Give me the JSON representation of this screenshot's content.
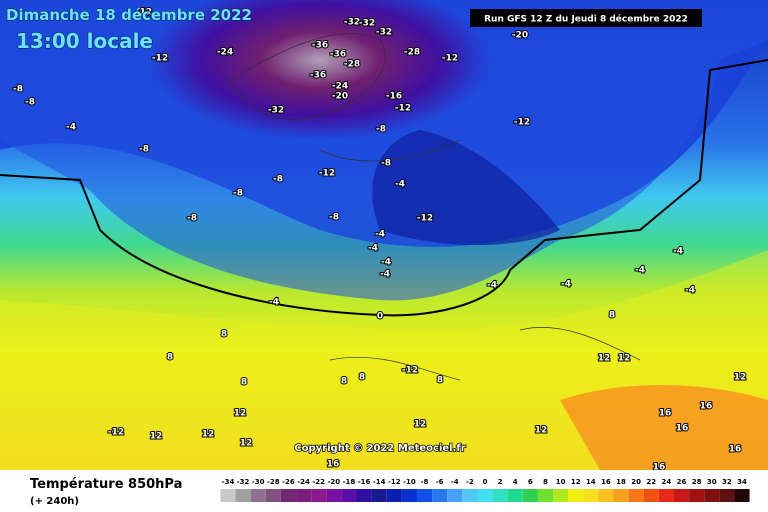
{
  "header": {
    "date": "Dimanche 18 décembre 2022",
    "time": "13:00 locale",
    "run": "Run GFS 12 Z du Jeudi 8 décembre 2022"
  },
  "footer": {
    "title": "Température 850hPa",
    "lead": "(+ 240h)",
    "copyright": "Copyright © 2022 Meteociel.fr"
  },
  "scale": {
    "ticks": [
      -34,
      -32,
      -30,
      -28,
      -26,
      -24,
      -22,
      -20,
      -18,
      -16,
      -14,
      -12,
      -10,
      -8,
      -6,
      -4,
      -2,
      0,
      2,
      4,
      6,
      8,
      10,
      12,
      14,
      16,
      18,
      20,
      22,
      24,
      26,
      28,
      30,
      32,
      34
    ],
    "colors": [
      "#c8c8c8",
      "#a0a0a0",
      "#907090",
      "#805080",
      "#702870",
      "#78207a",
      "#8a1a8e",
      "#7a10a0",
      "#5a10a8",
      "#3010a0",
      "#1a1a90",
      "#0a20b0",
      "#0a30d0",
      "#1050e8",
      "#2a78f0",
      "#48a0f8",
      "#50c8f8",
      "#40e0f0",
      "#30e0c0",
      "#20d890",
      "#30d050",
      "#70e030",
      "#b0e820",
      "#f0f010",
      "#f8e020",
      "#f8c020",
      "#f8a020",
      "#f87818",
      "#f05010",
      "#e82818",
      "#c81818",
      "#a01010",
      "#801010",
      "#601010",
      "#200808"
    ]
  },
  "map_labels": [
    -12,
    -24,
    -32,
    -32,
    -32,
    -36,
    -36,
    -28,
    -36,
    -24,
    -20,
    -32,
    -28,
    -12,
    -20,
    -16,
    -12,
    -12,
    -12,
    -8,
    -8,
    -4,
    -8,
    -8,
    -8,
    -12,
    -8,
    -8,
    -8,
    -8,
    -4,
    -12,
    -4,
    -4,
    -4,
    -4,
    -4,
    -4,
    -4,
    -4,
    -4,
    -4,
    0,
    8,
    8,
    8,
    8,
    -12,
    12,
    12,
    12,
    12,
    12,
    -12,
    12,
    12,
    12,
    16,
    16,
    16,
    16,
    16,
    16,
    12,
    8,
    8,
    8
  ]
}
